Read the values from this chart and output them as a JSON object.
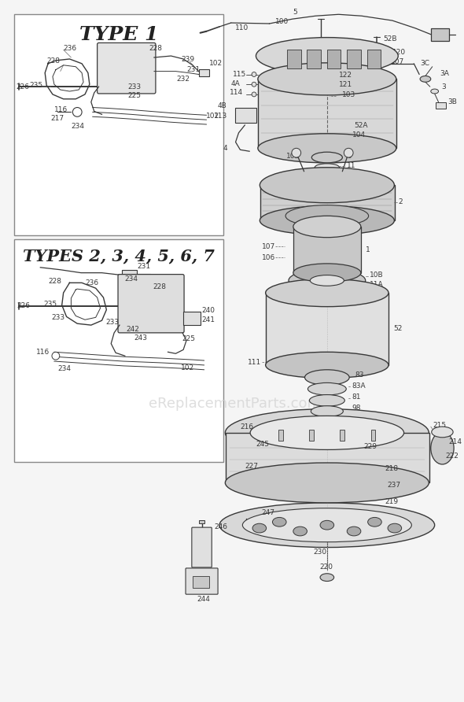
{
  "figsize": [
    5.9,
    8.92
  ],
  "dpi": 100,
  "bg_color": "#f5f5f5",
  "white": "#ffffff",
  "line_color": "#383838",
  "label_color": "#404040",
  "gray_light": "#e0e0e0",
  "gray_mid": "#c8c8c8",
  "gray_dark": "#a0a0a0",
  "watermark": "eReplacementParts.com",
  "watermark_color": "#d0d0d0",
  "type1_title": "TYPE 1",
  "types_title": "TYPES 2, 3, 4, 5, 6, 7"
}
